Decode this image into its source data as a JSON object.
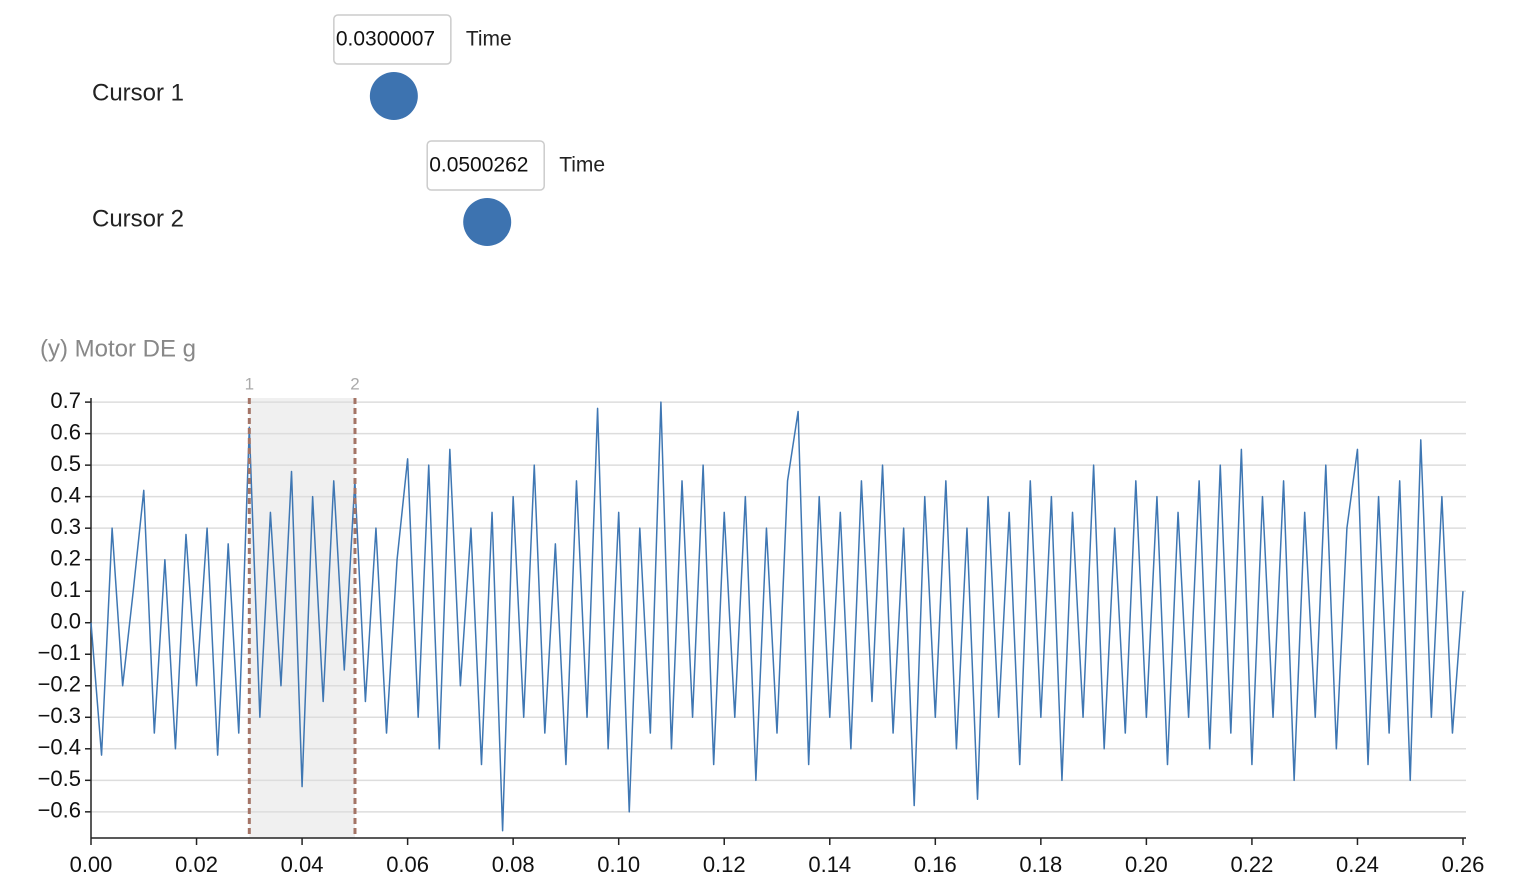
{
  "controls": [
    {
      "label": "Cursor 1",
      "marker": "1",
      "value": 0.0300007,
      "unit": "Time"
    },
    {
      "label": "Cursor 2",
      "marker": "2",
      "value": 0.0500262,
      "unit": "Time"
    }
  ],
  "chart_data": {
    "type": "line",
    "y_label": "(y) Motor DE g",
    "color": "#3f77b3",
    "grid": true,
    "xlim": [
      0,
      0.26
    ],
    "ylim": [
      -0.683,
      0.713
    ],
    "xticks": [
      {
        "value": 0,
        "label": "0.00"
      },
      {
        "value": 0.02,
        "label": "0.02"
      },
      {
        "value": 0.04,
        "label": "0.04"
      },
      {
        "value": 0.06,
        "label": "0.06"
      },
      {
        "value": 0.08,
        "label": "0.08"
      },
      {
        "value": 0.1,
        "label": "0.10"
      },
      {
        "value": 0.12,
        "label": "0.12"
      },
      {
        "value": 0.14,
        "label": "0.14"
      },
      {
        "value": 0.16,
        "label": "0.16"
      },
      {
        "value": 0.18,
        "label": "0.18"
      },
      {
        "value": 0.2,
        "label": "0.20"
      },
      {
        "value": 0.22,
        "label": "0.22"
      },
      {
        "value": 0.24,
        "label": "0.24"
      },
      {
        "value": 0.26,
        "label": "0.26"
      }
    ],
    "yticks": [
      {
        "value": 0.7,
        "label": "0.7"
      },
      {
        "value": 0.6,
        "label": "0.6"
      },
      {
        "value": 0.5,
        "label": "0.5"
      },
      {
        "value": 0.4,
        "label": "0.4"
      },
      {
        "value": 0.3,
        "label": "0.3"
      },
      {
        "value": 0.2,
        "label": "0.2"
      },
      {
        "value": 0.1,
        "label": "0.1"
      },
      {
        "value": 0,
        "label": "0.0"
      },
      {
        "value": -0.1,
        "label": "−0.1"
      },
      {
        "value": -0.2,
        "label": "−0.2"
      },
      {
        "value": -0.3,
        "label": "−0.3"
      },
      {
        "value": -0.4,
        "label": "−0.4"
      },
      {
        "value": -0.5,
        "label": "−0.5"
      },
      {
        "value": -0.6,
        "label": "−0.6"
      }
    ],
    "x": [
      0,
      0.002,
      0.004,
      0.006,
      0.008,
      0.01,
      0.012,
      0.014,
      0.016,
      0.018,
      0.02,
      0.022,
      0.024,
      0.026,
      0.028,
      0.03,
      0.032,
      0.034,
      0.036,
      0.038,
      0.04,
      0.042,
      0.044,
      0.046,
      0.048,
      0.05,
      0.052,
      0.054,
      0.056,
      0.058,
      0.06,
      0.062,
      0.064,
      0.066,
      0.068,
      0.07,
      0.072,
      0.074,
      0.076,
      0.078,
      0.08,
      0.082,
      0.084,
      0.086,
      0.088,
      0.09,
      0.092,
      0.094,
      0.096,
      0.098,
      0.1,
      0.102,
      0.104,
      0.106,
      0.108,
      0.11,
      0.112,
      0.114,
      0.116,
      0.118,
      0.12,
      0.122,
      0.124,
      0.126,
      0.128,
      0.13,
      0.132,
      0.134,
      0.136,
      0.138,
      0.14,
      0.142,
      0.144,
      0.146,
      0.148,
      0.15,
      0.152,
      0.154,
      0.156,
      0.158,
      0.16,
      0.162,
      0.164,
      0.166,
      0.168,
      0.17,
      0.172,
      0.174,
      0.176,
      0.178,
      0.18,
      0.182,
      0.184,
      0.186,
      0.188,
      0.19,
      0.192,
      0.194,
      0.196,
      0.198,
      0.2,
      0.202,
      0.204,
      0.206,
      0.208,
      0.21,
      0.212,
      0.214,
      0.216,
      0.218,
      0.22,
      0.222,
      0.224,
      0.226,
      0.228,
      0.23,
      0.232,
      0.234,
      0.236,
      0.238,
      0.24,
      0.242,
      0.244,
      0.246,
      0.248,
      0.25,
      0.252,
      0.254,
      0.256,
      0.258,
      0.26
    ],
    "values": [
      0,
      -0.42,
      0.3,
      -0.2,
      0.1,
      0.42,
      -0.35,
      0.2,
      -0.4,
      0.28,
      -0.2,
      0.3,
      -0.42,
      0.25,
      -0.35,
      0.62,
      -0.3,
      0.35,
      -0.2,
      0.48,
      -0.52,
      0.4,
      -0.25,
      0.45,
      -0.15,
      0.45,
      -0.25,
      0.3,
      -0.35,
      0.2,
      0.52,
      -0.3,
      0.5,
      -0.4,
      0.55,
      -0.2,
      0.3,
      -0.45,
      0.35,
      -0.66,
      0.4,
      -0.3,
      0.5,
      -0.35,
      0.25,
      -0.45,
      0.45,
      -0.3,
      0.68,
      -0.4,
      0.35,
      -0.6,
      0.3,
      -0.35,
      0.7,
      -0.4,
      0.45,
      -0.3,
      0.5,
      -0.45,
      0.35,
      -0.3,
      0.4,
      -0.5,
      0.3,
      -0.35,
      0.45,
      0.67,
      -0.45,
      0.4,
      -0.3,
      0.35,
      -0.4,
      0.45,
      -0.25,
      0.5,
      -0.35,
      0.3,
      -0.58,
      0.4,
      -0.3,
      0.45,
      -0.4,
      0.3,
      -0.56,
      0.4,
      -0.3,
      0.35,
      -0.45,
      0.45,
      -0.3,
      0.4,
      -0.5,
      0.35,
      -0.3,
      0.5,
      -0.4,
      0.3,
      -0.35,
      0.45,
      -0.3,
      0.4,
      -0.45,
      0.35,
      -0.3,
      0.45,
      -0.4,
      0.5,
      -0.35,
      0.55,
      -0.45,
      0.4,
      -0.3,
      0.45,
      -0.5,
      0.35,
      -0.3,
      0.5,
      -0.4,
      0.3,
      0.55,
      -0.45,
      0.4,
      -0.35,
      0.45,
      -0.5,
      0.58,
      -0.3,
      0.4,
      -0.35,
      0.1
    ]
  }
}
